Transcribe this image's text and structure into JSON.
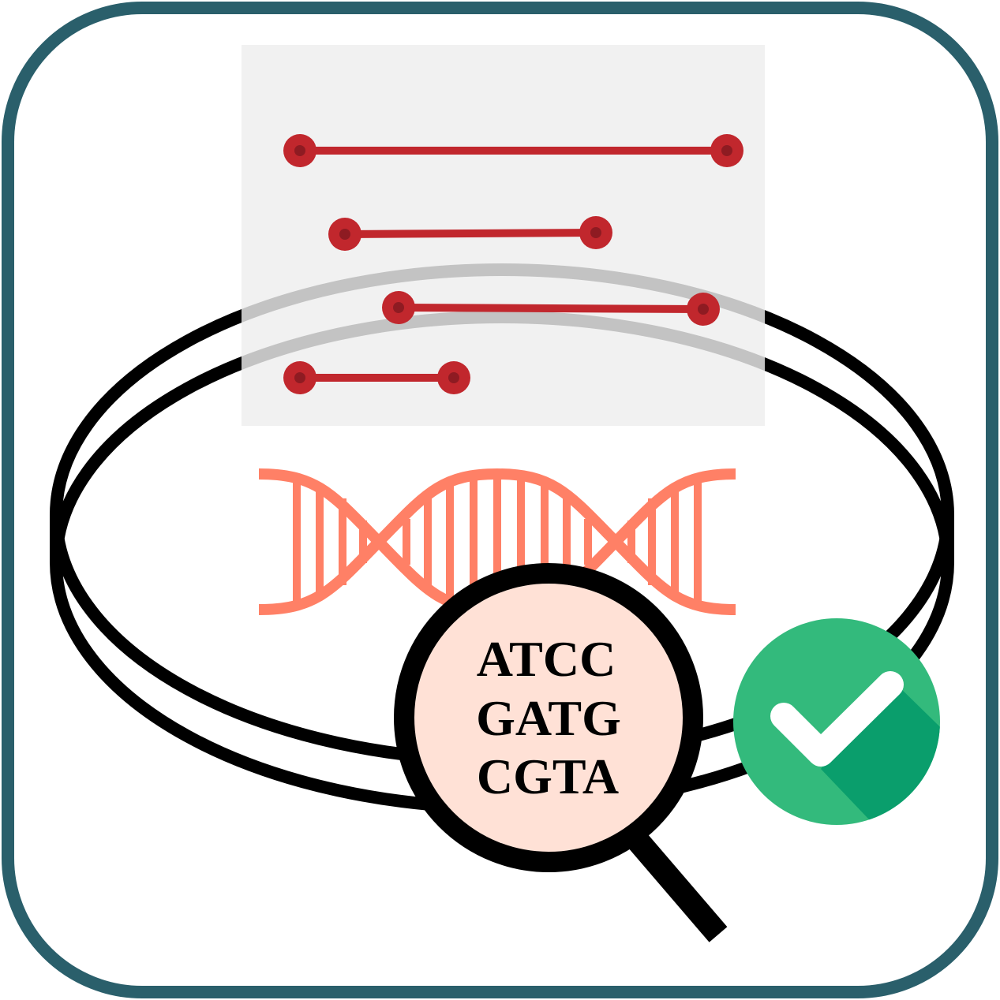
{
  "colors": {
    "frame": "#2a5f6b",
    "background": "#ffffff",
    "gel_panel": "#f2f2f2",
    "band": "#c1272d",
    "band_dot": "#8e1b22",
    "dna_helix": "#ff8066",
    "lens_fill": "#ffe1d6",
    "lens_rim": "#000000",
    "petri_dish": "#000000",
    "check_circle": "#33ba7c",
    "check_shadow": "#0a9e6c",
    "check_mark": "#ffffff"
  },
  "icons": {
    "frame": "rounded-square-frame",
    "petri_dish": "petri-dish-icon",
    "gel": "gel-electrophoresis-icon",
    "dna": "dna-double-helix-icon",
    "magnifier": "magnifying-glass-icon",
    "check": "checkmark-badge-icon"
  },
  "magnifier": {
    "sequence": [
      "ATCC",
      "GATG",
      "CGTA"
    ]
  }
}
